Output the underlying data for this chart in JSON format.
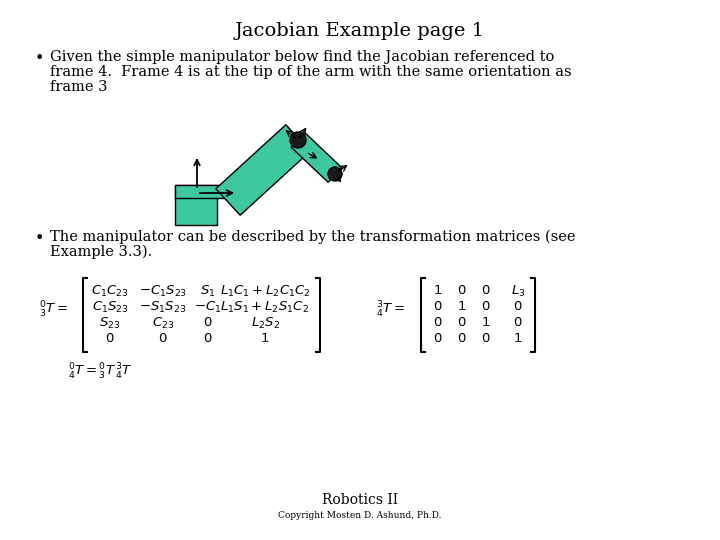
{
  "title": "Jacobian Example page 1",
  "bullet1_line1": "Given the simple manipulator below find the Jacobian referenced to",
  "bullet1_line2": "frame 4.  Frame 4 is at the tip of the arm with the same orientation as",
  "bullet1_line3": "frame 3",
  "bullet2_line1": "The manipulator can be described by the transformation matrices (see",
  "bullet2_line2": "Example 3.3).",
  "footer1": "Robotics II",
  "footer2": "Copyright Mosten D. Ashund, Ph.D.",
  "bg_color": "#ffffff",
  "text_color": "#000000",
  "teal_color": "#3DC8A0",
  "title_fontsize": 14,
  "body_fontsize": 10.5,
  "math_fontsize": 9.5
}
